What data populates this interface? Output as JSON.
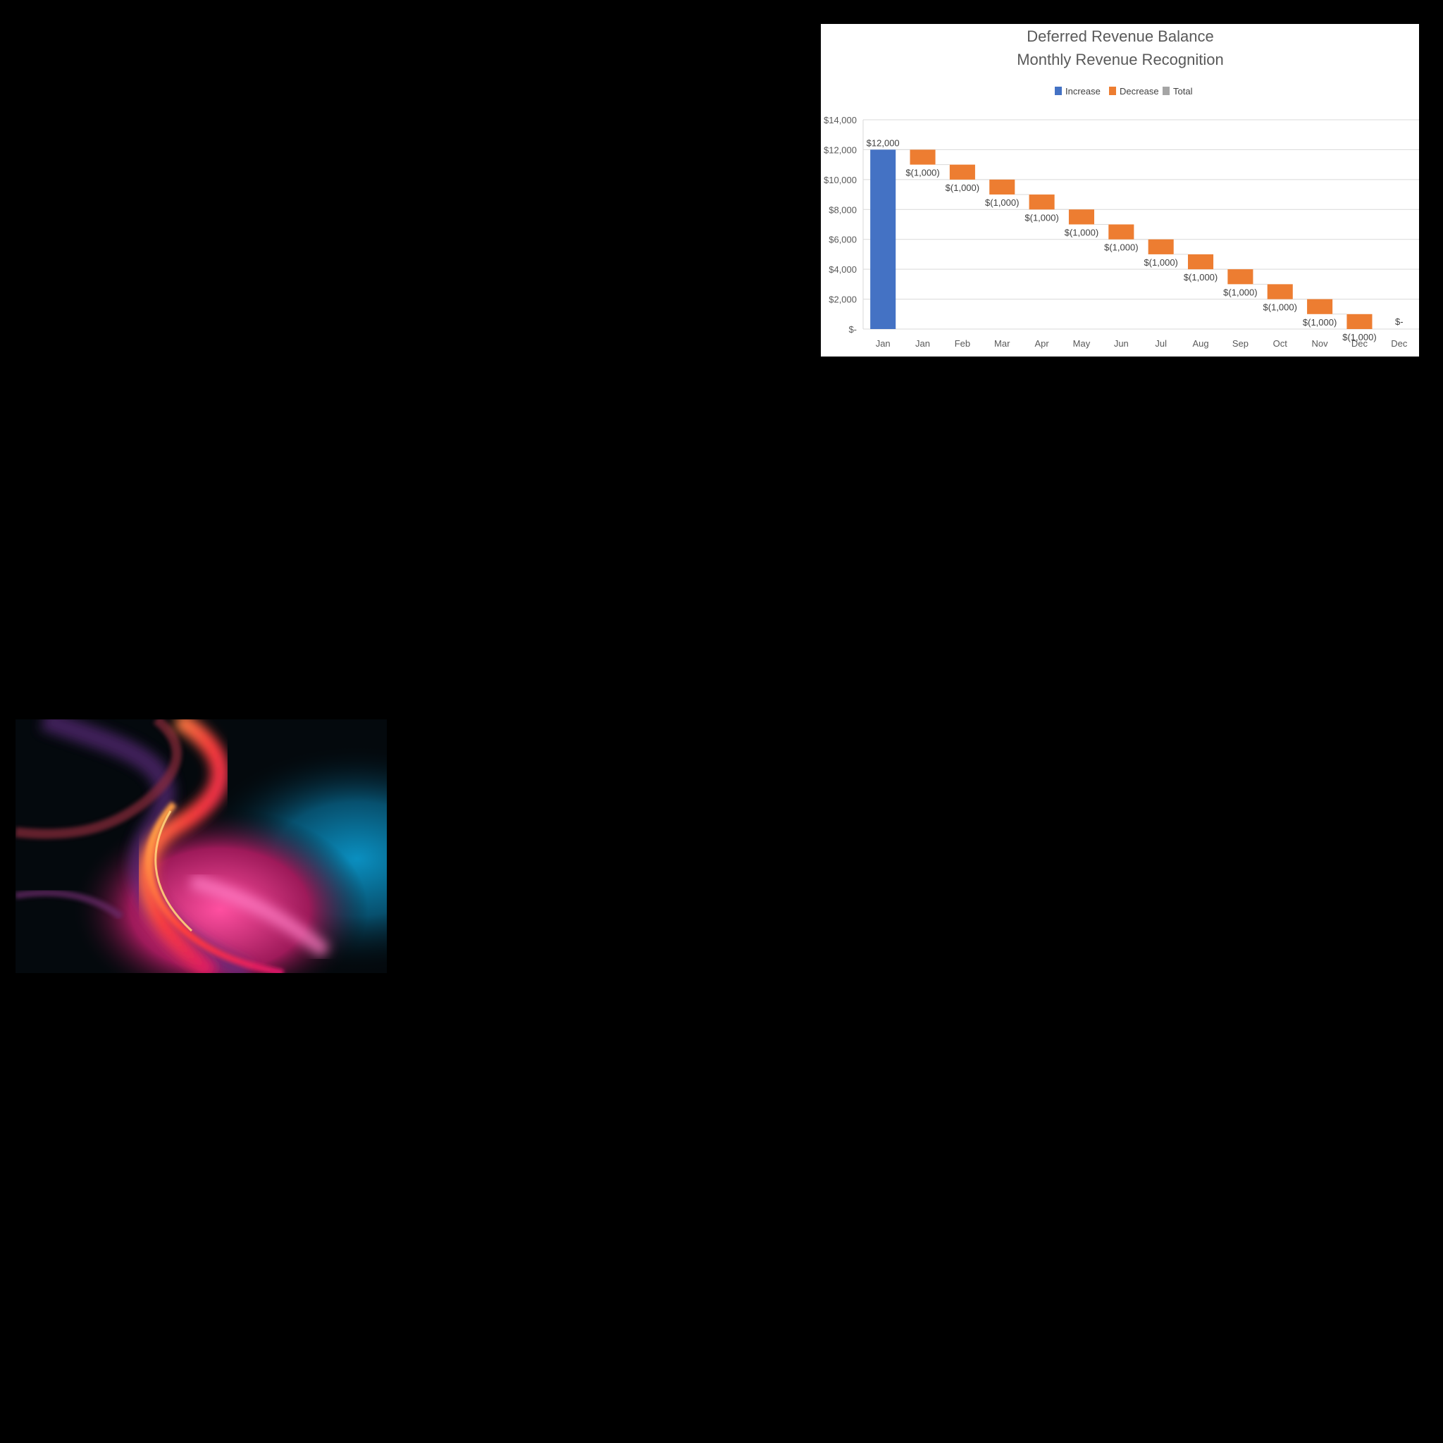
{
  "chart_data": {
    "type": "waterfall",
    "title": "Deferred Revenue Balance",
    "subtitle": "Monthly Revenue Recognition",
    "legend": [
      {
        "name": "Increase",
        "color": "#4472c4"
      },
      {
        "name": "Decrease",
        "color": "#ed7d31"
      },
      {
        "name": "Total",
        "color": "#a5a5a5"
      }
    ],
    "legend_position": "top",
    "grid": true,
    "ylim": [
      0,
      14000
    ],
    "y_ticks": [
      0,
      2000,
      4000,
      6000,
      8000,
      10000,
      12000,
      14000
    ],
    "y_tick_labels": [
      "$-",
      "$2,000",
      "$4,000",
      "$6,000",
      "$8,000",
      "$10,000",
      "$12,000",
      "$14,000"
    ],
    "categories": [
      "Jan",
      "Jan",
      "Feb",
      "Mar",
      "Apr",
      "May",
      "Jun",
      "Jul",
      "Aug",
      "Sep",
      "Oct",
      "Nov",
      "Dec",
      "Dec"
    ],
    "values": [
      12000,
      -1000,
      -1000,
      -1000,
      -1000,
      -1000,
      -1000,
      -1000,
      -1000,
      -1000,
      -1000,
      -1000,
      -1000,
      0
    ],
    "kinds": [
      "increase",
      "decrease",
      "decrease",
      "decrease",
      "decrease",
      "decrease",
      "decrease",
      "decrease",
      "decrease",
      "decrease",
      "decrease",
      "decrease",
      "decrease",
      "total"
    ],
    "data_labels": [
      "$12,000",
      "$(1,000)",
      "$(1,000)",
      "$(1,000)",
      "$(1,000)",
      "$(1,000)",
      "$(1,000)",
      "$(1,000)",
      "$(1,000)",
      "$(1,000)",
      "$(1,000)",
      "$(1,000)",
      "$(1,000)",
      "$-"
    ]
  },
  "image": {
    "subject": "abstract-swirl"
  }
}
